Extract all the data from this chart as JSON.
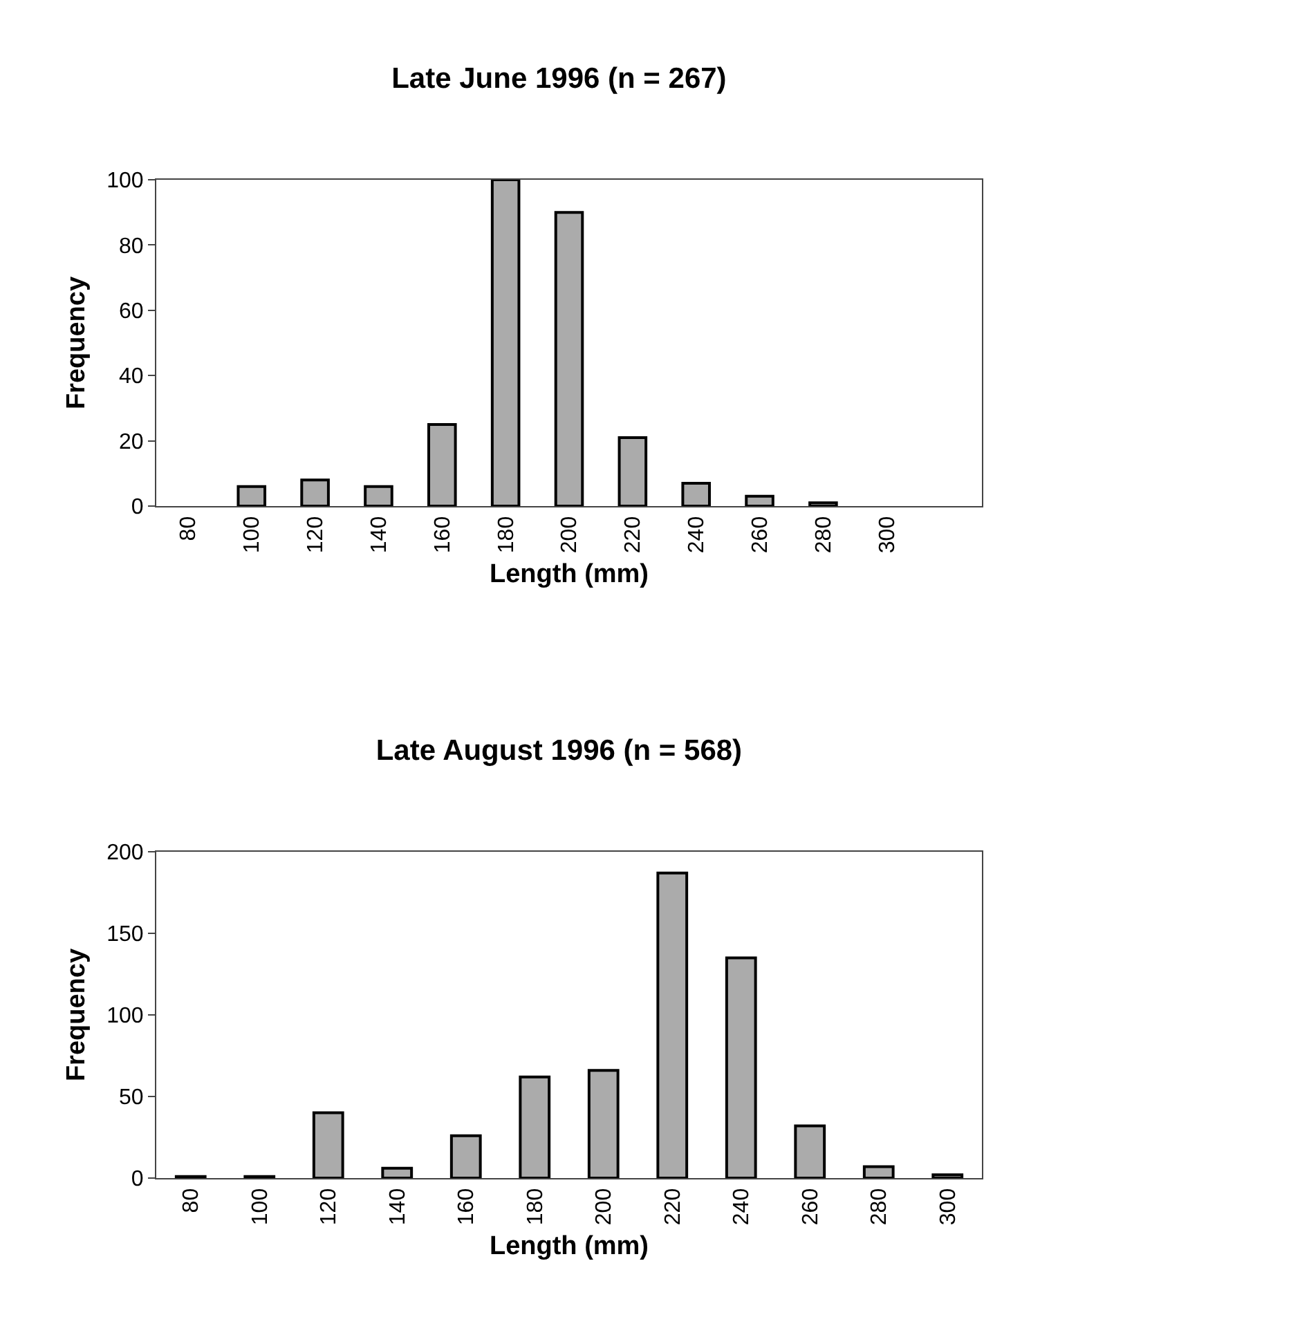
{
  "chart_data": [
    {
      "type": "bar",
      "title": "Late June 1996 (n = 267)",
      "xlabel": "Length (mm)",
      "ylabel": "Frequency",
      "categories": [
        "80",
        "100",
        "120",
        "140",
        "160",
        "180",
        "200",
        "220",
        "240",
        "260",
        "280",
        "300",
        null
      ],
      "values": [
        null,
        6,
        8,
        6,
        25,
        100,
        90,
        21,
        7,
        3,
        1,
        null,
        null
      ],
      "color": "#ababab",
      "ylim": [
        0,
        100
      ],
      "yticks": [
        0,
        20,
        40,
        60,
        80,
        100
      ]
    },
    {
      "type": "bar",
      "title": "Late August 1996 (n = 568)",
      "xlabel": "Length (mm)",
      "ylabel": "Frequency",
      "categories": [
        "80",
        "100",
        "120",
        "140",
        "160",
        "180",
        "200",
        "220",
        "240",
        "260",
        "280",
        "300"
      ],
      "values": [
        1,
        1,
        40,
        6,
        26,
        62,
        66,
        187,
        135,
        32,
        7,
        2
      ],
      "color": "#ababab",
      "ylim": [
        0,
        200
      ],
      "yticks": [
        0,
        50,
        100,
        150,
        200
      ]
    }
  ]
}
